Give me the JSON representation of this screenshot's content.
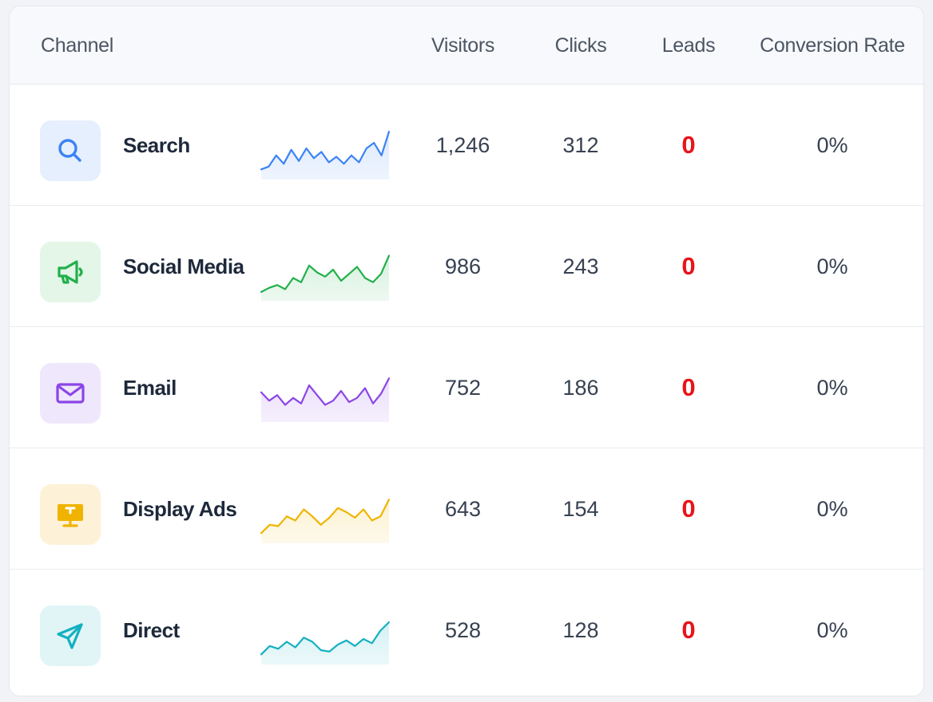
{
  "table": {
    "headers": {
      "channel": "Channel",
      "visitors": "Visitors",
      "clicks": "Clicks",
      "leads": "Leads",
      "conversion_rate": "Conversion Rate"
    },
    "rows": [
      {
        "channel": "Search",
        "icon": "search-icon",
        "color": "#3b82f6",
        "bg": "#e5effd",
        "trend": [
          10,
          14,
          30,
          18,
          38,
          22,
          40,
          26,
          35,
          20,
          28,
          18,
          30,
          20,
          40,
          48,
          30,
          64
        ],
        "visitors": "1,246",
        "clicks": "312",
        "leads": "0",
        "conversion_rate": "0%"
      },
      {
        "channel": "Social Media",
        "icon": "megaphone-icon",
        "color": "#22b04b",
        "bg": "#e3f6e7",
        "trend": [
          8,
          14,
          18,
          12,
          28,
          22,
          46,
          36,
          30,
          40,
          24,
          34,
          44,
          28,
          22,
          34,
          60
        ],
        "visitors": "986",
        "clicks": "243",
        "leads": "0",
        "conversion_rate": "0%"
      },
      {
        "channel": "Email",
        "icon": "mail-icon",
        "color": "#8b46e6",
        "bg": "#efe7fc",
        "trend": [
          38,
          26,
          34,
          20,
          30,
          22,
          48,
          34,
          20,
          26,
          40,
          24,
          30,
          44,
          22,
          36,
          58
        ],
        "visitors": "752",
        "clicks": "186",
        "leads": "0",
        "conversion_rate": "0%"
      },
      {
        "channel": "Display Ads",
        "icon": "monitor-icon",
        "color": "#f0b400",
        "bg": "#fdf1d8",
        "trend": [
          10,
          22,
          20,
          34,
          28,
          44,
          34,
          22,
          32,
          46,
          40,
          32,
          44,
          28,
          34,
          58
        ],
        "visitors": "643",
        "clicks": "154",
        "leads": "0",
        "conversion_rate": "0%"
      },
      {
        "channel": "Direct",
        "icon": "send-icon",
        "color": "#14b0c0",
        "bg": "#e1f5f7",
        "trend": [
          10,
          22,
          18,
          28,
          20,
          34,
          28,
          16,
          14,
          24,
          30,
          22,
          32,
          26,
          44,
          56
        ],
        "visitors": "528",
        "clicks": "128",
        "leads": "0",
        "conversion_rate": "0%"
      }
    ],
    "leads_color": "#e8141a"
  }
}
